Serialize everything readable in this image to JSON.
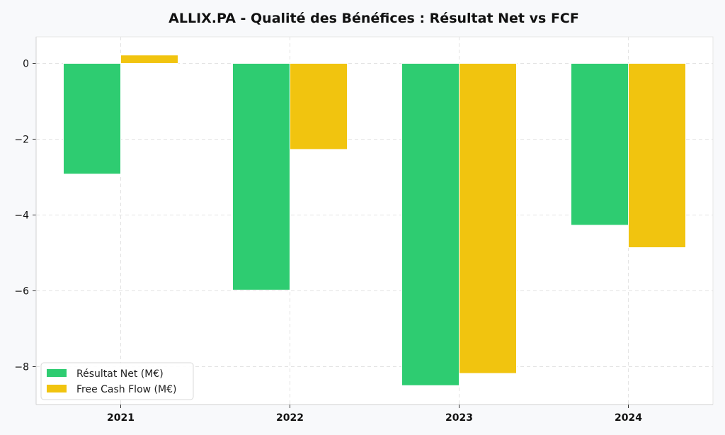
{
  "chart_data": {
    "type": "bar",
    "title": "ALLIX.PA - Qualité des Bénéfices : Résultat Net vs FCF",
    "xlabel": "",
    "ylabel": "",
    "categories": [
      "2021",
      "2022",
      "2023",
      "2024"
    ],
    "series": [
      {
        "name": "Résultat Net (M€)",
        "color": "#2ecc71",
        "values": [
          -2.92,
          -5.98,
          -8.5,
          -4.27
        ]
      },
      {
        "name": "Free Cash Flow (M€)",
        "color": "#f1c40f",
        "values": [
          0.22,
          -2.27,
          -8.18,
          -4.86
        ]
      }
    ],
    "ylim": [
      -9.0,
      0.7
    ],
    "yticks": [
      0,
      -2,
      -4,
      -6,
      -8
    ],
    "ytick_labels": [
      "0",
      "−2",
      "−4",
      "−6",
      "−8"
    ],
    "grid": true,
    "legend_position": "lower-left"
  }
}
